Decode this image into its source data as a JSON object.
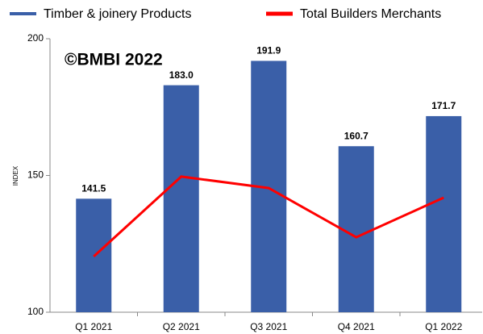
{
  "chart_data": {
    "type": "bar",
    "annotation": "©BMBI 2022",
    "y_label": "INDEX",
    "categories": [
      "Q1 2021",
      "Q2 2021",
      "Q3 2021",
      "Q4 2021",
      "Q1 2022"
    ],
    "series": [
      {
        "name": "Timber & joinery Products",
        "color": "#3a5fa8",
        "type": "bar",
        "values": [
          141.5,
          183.0,
          191.9,
          160.7,
          171.7
        ],
        "value_labels": [
          "141.5",
          "183.0",
          "191.9",
          "160.7",
          "171.7"
        ]
      },
      {
        "name": "Total Builders Merchants",
        "color": "#ff0000",
        "type": "line",
        "values": [
          120.4,
          149.6,
          145.4,
          127.4,
          141.9
        ]
      }
    ],
    "ylim": [
      100,
      200
    ],
    "yticks": [
      100,
      150,
      200
    ]
  }
}
